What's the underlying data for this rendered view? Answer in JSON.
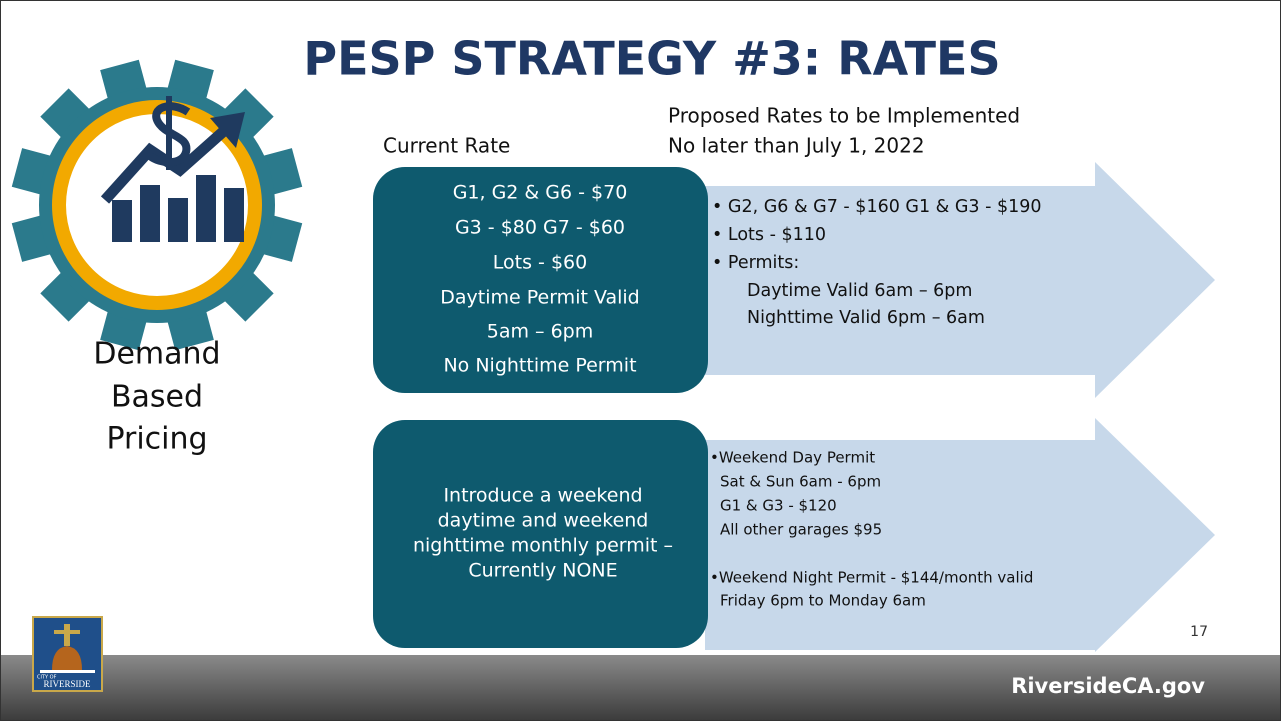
{
  "header": {
    "title": "PESP STRATEGY #3: RATES"
  },
  "sidebar": {
    "lines": [
      "Demand",
      "Based",
      "Pricing"
    ]
  },
  "current": {
    "heading": "Current Rate",
    "boxes": [
      {
        "lines": [
          "G1, G2 & G6 - $70",
          "G3 - $80 G7 - $60",
          "Lots - $60",
          "Daytime Permit Valid",
          "5am – 6pm",
          "No Nighttime Permit"
        ]
      },
      {
        "lines": [
          "Introduce a weekend",
          "daytime and weekend",
          "nighttime monthly permit –",
          "Currently NONE"
        ]
      }
    ]
  },
  "proposed": {
    "heading_lines": [
      "Proposed Rates to be Implemented",
      "No later than July 1, 2022"
    ],
    "arrows": [
      {
        "lines": [
          "• G2, G6 & G7 - $160  G1 & G3 - $190",
          "• Lots - $110",
          "• Permits:",
          "Daytime Valid 6am – 6pm",
          "Nighttime Valid 6pm – 6am"
        ]
      },
      {
        "lines": [
          "•Weekend Day Permit",
          "Sat & Sun 6am - 6pm",
          "G1 & G3 - $120",
          "All other garages $95",
          "•Weekend Night Permit - $144/month valid",
          "Friday 6pm to Monday 6am"
        ]
      }
    ]
  },
  "page_number": "17",
  "logo": {
    "lines": [
      "CITY OF",
      "RIVERSIDE"
    ]
  },
  "footer": {
    "site": "RiversideCA.gov"
  }
}
